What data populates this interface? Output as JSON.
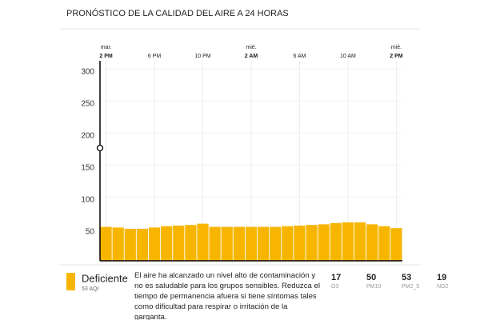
{
  "chart_data": {
    "type": "bar",
    "title": "PRONÓSTICO DE LA CALIDAD DEL AIRE A 24 HORAS",
    "categories": [
      "2 PM",
      null,
      null,
      null,
      "6 PM",
      null,
      null,
      null,
      "10 PM",
      null,
      null,
      null,
      "2 AM",
      null,
      null,
      null,
      "6 AM",
      null,
      null,
      null,
      "10 AM",
      null,
      null,
      null,
      "2 PM"
    ],
    "day_labels": [
      "mar.",
      null,
      null,
      null,
      null,
      null,
      null,
      null,
      null,
      null,
      null,
      null,
      "mié.",
      null,
      null,
      null,
      null,
      null,
      null,
      null,
      null,
      null,
      null,
      null,
      "mié."
    ],
    "values": [
      53,
      52,
      50,
      50,
      52,
      54,
      55,
      56,
      58,
      53,
      53,
      53,
      53,
      53,
      53,
      54,
      55,
      56,
      57,
      59,
      60,
      60,
      57,
      54,
      51
    ],
    "color": "#f7b500",
    "ylim": [
      0,
      300
    ],
    "yticks": [
      50,
      100,
      150,
      200,
      250,
      300
    ],
    "grid": true
  },
  "summary": {
    "level": "Deficiente",
    "aqi_label": "53 AQI",
    "description": "El aire ha alcanzado un nivel alto de contaminación y no es saludable para los grupos sensibles. Reduzca el tiempo de permanencia afuera si tiene síntomas tales como dificultad para respirar o irritación de la garganta.",
    "pollutants": [
      {
        "value": 17,
        "name": "O3"
      },
      {
        "value": 50,
        "name": "PM10"
      },
      {
        "value": 53,
        "name": "PM2_5"
      },
      {
        "value": 19,
        "name": "NO2"
      }
    ]
  }
}
